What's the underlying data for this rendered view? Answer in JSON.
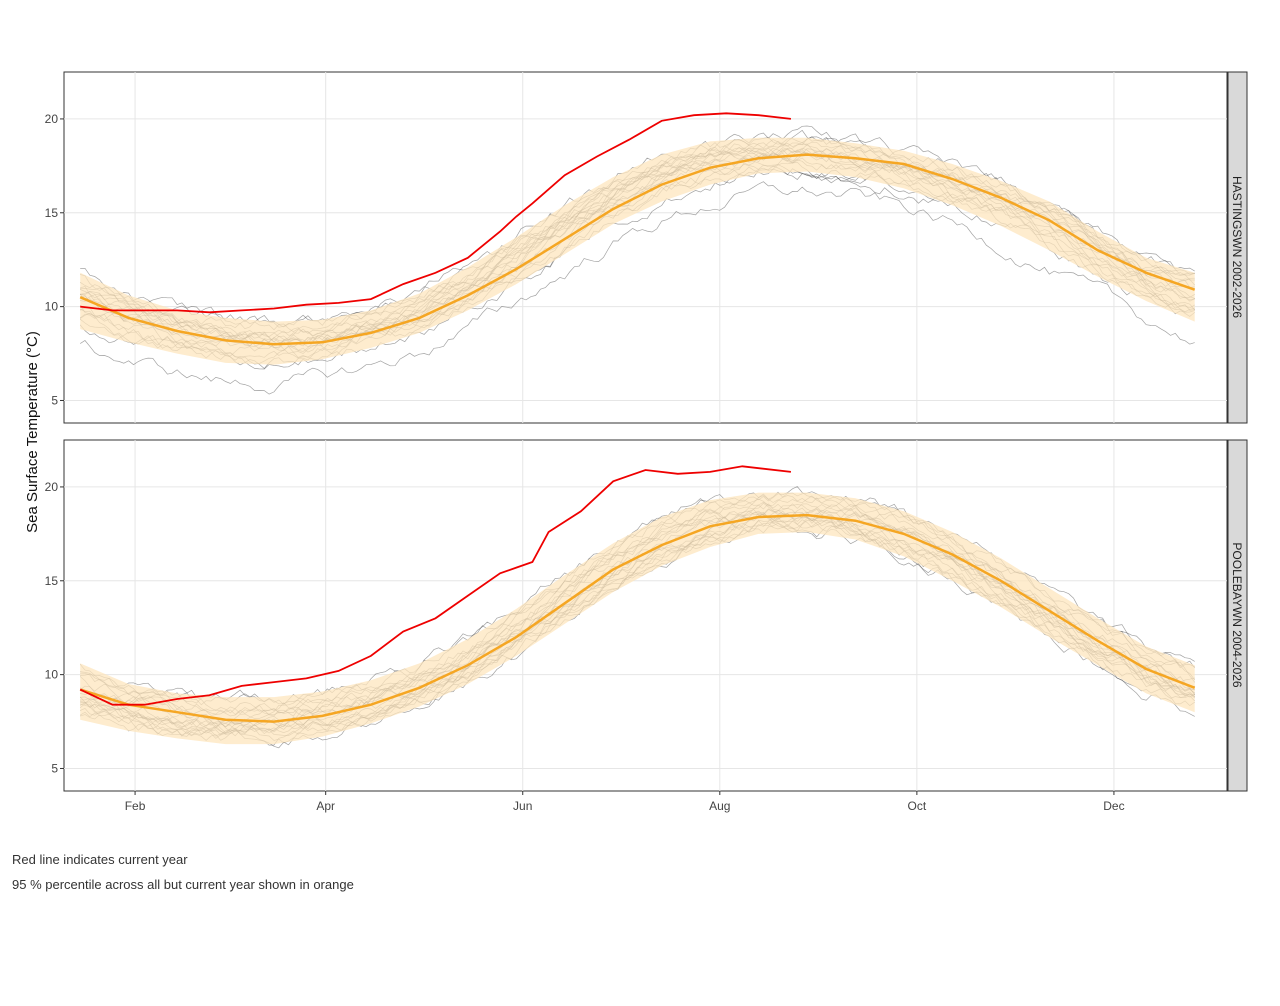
{
  "chart_data": {
    "type": "line",
    "ylabel": "Sea Surface Temperature (°C)",
    "x_ticks": [
      "Feb",
      "Apr",
      "Jun",
      "Aug",
      "Oct",
      "Dec"
    ],
    "x_tick_months": [
      2,
      4,
      6,
      8,
      10,
      12
    ],
    "y_ticks": [
      5,
      10,
      15,
      20
    ],
    "xlim_day_of_year": [
      10,
      370
    ],
    "colors": {
      "current_year": "#ee0000",
      "percentile_band": "#fde5bd",
      "median": "#f5a623",
      "historical": "#333333"
    },
    "panels": [
      {
        "name": "HASTINGSWN 2002-2026",
        "ylim": [
          3.8,
          22.5
        ],
        "day_of_year": [
          15,
          30,
          45,
          60,
          75,
          90,
          105,
          120,
          135,
          150,
          165,
          180,
          195,
          210,
          225,
          240,
          255,
          270,
          285,
          300,
          315,
          330,
          345,
          360
        ],
        "median": [
          10.5,
          9.4,
          8.7,
          8.2,
          8.0,
          8.1,
          8.6,
          9.4,
          10.6,
          12.0,
          13.6,
          15.2,
          16.5,
          17.4,
          17.9,
          18.1,
          17.9,
          17.6,
          16.8,
          15.8,
          14.6,
          13.0,
          11.8,
          10.9
        ],
        "lower": [
          8.8,
          8.1,
          7.5,
          7.0,
          6.9,
          7.2,
          7.8,
          8.6,
          9.8,
          11.2,
          12.8,
          14.4,
          15.6,
          16.5,
          17.1,
          17.2,
          16.9,
          16.3,
          15.4,
          14.3,
          13.0,
          11.6,
          10.3,
          9.2
        ],
        "upper": [
          11.8,
          10.6,
          9.8,
          9.4,
          9.2,
          9.3,
          9.8,
          10.7,
          12.1,
          13.7,
          15.4,
          16.9,
          18.1,
          18.8,
          19.0,
          19.0,
          18.7,
          18.3,
          17.6,
          16.7,
          15.6,
          14.0,
          12.6,
          11.8
        ],
        "current_year": {
          "day_of_year": [
            15,
            25,
            35,
            45,
            55,
            65,
            75,
            85,
            95,
            105,
            115,
            125,
            135,
            145,
            150,
            155,
            165,
            175,
            185,
            195,
            205,
            215,
            225,
            235
          ],
          "values": [
            10.0,
            9.8,
            9.8,
            9.8,
            9.7,
            9.8,
            9.9,
            10.1,
            10.2,
            10.4,
            11.2,
            11.8,
            12.6,
            14.0,
            14.8,
            15.5,
            17.0,
            18.0,
            18.9,
            19.9,
            20.2,
            20.3,
            20.2,
            20.0
          ]
        }
      },
      {
        "name": "POOLEBAYWN 2004-2026",
        "ylim": [
          3.8,
          22.5
        ],
        "day_of_year": [
          15,
          30,
          45,
          60,
          75,
          90,
          105,
          120,
          135,
          150,
          165,
          180,
          195,
          210,
          225,
          240,
          255,
          270,
          285,
          300,
          315,
          330,
          345,
          360
        ],
        "median": [
          9.2,
          8.4,
          8.0,
          7.6,
          7.5,
          7.8,
          8.4,
          9.3,
          10.5,
          12.0,
          13.8,
          15.6,
          16.9,
          17.9,
          18.4,
          18.5,
          18.2,
          17.5,
          16.4,
          15.0,
          13.4,
          11.8,
          10.3,
          9.3
        ],
        "lower": [
          7.6,
          7.0,
          6.6,
          6.3,
          6.3,
          6.7,
          7.4,
          8.3,
          9.5,
          11.0,
          12.7,
          14.4,
          15.8,
          16.8,
          17.5,
          17.6,
          17.2,
          16.3,
          15.0,
          13.6,
          12.0,
          10.5,
          9.0,
          8.0
        ],
        "upper": [
          10.6,
          9.5,
          9.0,
          8.8,
          8.8,
          9.1,
          9.7,
          10.6,
          11.9,
          13.5,
          15.3,
          17.0,
          18.4,
          19.3,
          19.7,
          19.7,
          19.4,
          18.7,
          17.6,
          16.2,
          14.6,
          13.0,
          11.5,
          10.5
        ],
        "current_year": {
          "day_of_year": [
            15,
            25,
            35,
            45,
            55,
            65,
            75,
            85,
            95,
            105,
            115,
            125,
            135,
            145,
            150,
            155,
            160,
            170,
            180,
            190,
            200,
            210,
            220,
            235
          ],
          "values": [
            9.2,
            8.4,
            8.4,
            8.7,
            8.9,
            9.4,
            9.6,
            9.8,
            10.2,
            11.0,
            12.3,
            13.0,
            14.2,
            15.4,
            15.7,
            16.0,
            17.6,
            18.7,
            20.3,
            20.9,
            20.7,
            20.8,
            21.1,
            20.8
          ]
        }
      }
    ]
  },
  "notes": {
    "line1": "Red line indicates current year",
    "line2": "95 % percentile across all but current year shown in orange"
  }
}
